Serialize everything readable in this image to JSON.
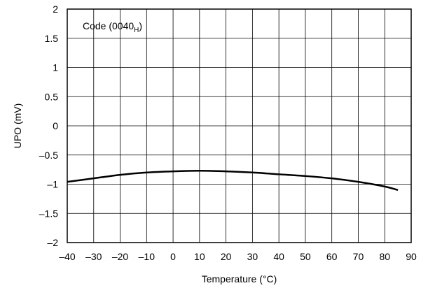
{
  "chart_data": {
    "type": "line",
    "xlabel": "Temperature (°C)",
    "ylabel": "UPO (mV)",
    "xlim": [
      -40,
      90
    ],
    "ylim": [
      -2,
      2
    ],
    "x_ticks": [
      -40,
      -30,
      -20,
      -10,
      0,
      10,
      20,
      30,
      40,
      50,
      60,
      70,
      80,
      90
    ],
    "y_ticks": [
      2,
      1.5,
      1,
      0.5,
      0,
      -0.5,
      -1,
      -1.5,
      -2
    ],
    "x_tick_labels": [
      "–40",
      "–30",
      "–20",
      "–10",
      "0",
      "10",
      "20",
      "30",
      "40",
      "50",
      "60",
      "70",
      "80",
      "90"
    ],
    "y_tick_labels": [
      "2",
      "1.5",
      "1",
      "0.5",
      "0",
      "–0.5",
      "–1",
      "–1.5",
      "–2"
    ],
    "grid": true,
    "annotation": {
      "main": "Code (0040",
      "subscript": "H",
      "close": ")"
    },
    "series": [
      {
        "x": [
          -40,
          -30,
          -20,
          -10,
          0,
          10,
          20,
          30,
          40,
          50,
          60,
          70,
          80,
          85
        ],
        "y": [
          -0.96,
          -0.9,
          -0.84,
          -0.8,
          -0.78,
          -0.77,
          -0.78,
          -0.8,
          -0.83,
          -0.86,
          -0.9,
          -0.96,
          -1.04,
          -1.1
        ],
        "color": "#000000"
      }
    ]
  }
}
